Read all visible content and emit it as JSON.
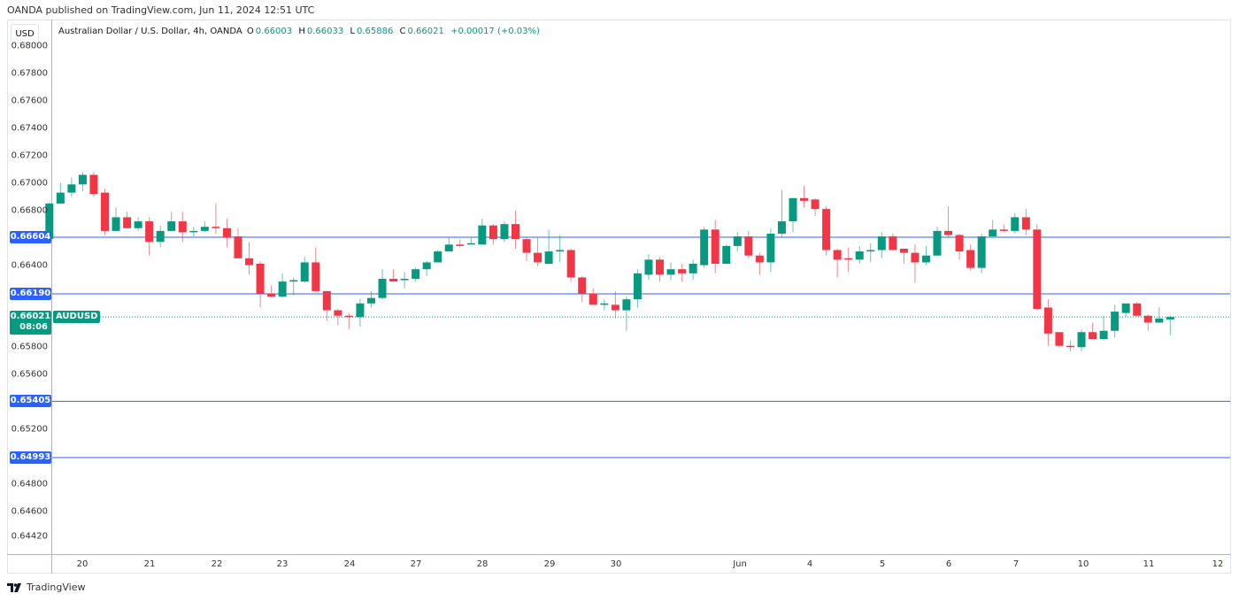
{
  "publisher_line": "OANDA published on TradingView.com, Jun 11, 2024 12:51 UTC",
  "currency_button": "USD",
  "legend": {
    "title": "Australian Dollar / U.S. Dollar, 4h, OANDA",
    "o_label": "O",
    "o": "0.66003",
    "h_label": "H",
    "h": "0.66033",
    "l_label": "L",
    "l": "0.65886",
    "c_label": "C",
    "c": "0.66021",
    "change": "+0.00017 (+0.03%)"
  },
  "symbol_tag": "AUDUSD",
  "current_price": {
    "value": "0.66021",
    "countdown": "08:06",
    "price": 0.66021
  },
  "horizontal_levels": [
    {
      "label": "0.66604",
      "price": 0.66604
    },
    {
      "label": "0.66190",
      "price": 0.6619
    },
    {
      "label": "0.65405",
      "price": 0.65405
    },
    {
      "label": "0.64993",
      "price": 0.64993
    }
  ],
  "price_axis": [
    {
      "label": "0.68000",
      "price": 0.68
    },
    {
      "label": "0.67800",
      "price": 0.678
    },
    {
      "label": "0.67600",
      "price": 0.676
    },
    {
      "label": "0.67400",
      "price": 0.674
    },
    {
      "label": "0.67200",
      "price": 0.672
    },
    {
      "label": "0.67000",
      "price": 0.67
    },
    {
      "label": "0.66800",
      "price": 0.668
    },
    {
      "label": "0.66400",
      "price": 0.664
    },
    {
      "label": "0.65800",
      "price": 0.658
    },
    {
      "label": "0.65600",
      "price": 0.656
    },
    {
      "label": "0.65200",
      "price": 0.652
    },
    {
      "label": "0.64800",
      "price": 0.648
    },
    {
      "label": "0.64600",
      "price": 0.646
    },
    {
      "label": "0.64420",
      "price": 0.6442
    }
  ],
  "time_axis": [
    "20",
    "21",
    "22",
    "23",
    "24",
    "27",
    "28",
    "29",
    "30",
    "Jun",
    "4",
    "5",
    "6",
    "7",
    "10",
    "11",
    "12"
  ],
  "colors": {
    "up": "#089981",
    "down": "#f23645",
    "level": "#2962ff"
  },
  "logo_text": "TradingView",
  "chart_data": {
    "type": "candlestick",
    "title": "Australian Dollar / U.S. Dollar, 4h, OANDA",
    "ohlc_order": [
      "open",
      "high",
      "low",
      "close"
    ],
    "candles": [
      [
        0.6659,
        0.6686,
        0.6658,
        0.6685
      ],
      [
        0.6685,
        0.67,
        0.6685,
        0.6693
      ],
      [
        0.6693,
        0.6704,
        0.669,
        0.6699
      ],
      [
        0.6699,
        0.6708,
        0.6694,
        0.6706
      ],
      [
        0.6706,
        0.6708,
        0.669,
        0.6692
      ],
      [
        0.6693,
        0.6696,
        0.6662,
        0.6665
      ],
      [
        0.6665,
        0.6682,
        0.6665,
        0.6675
      ],
      [
        0.6675,
        0.6679,
        0.6667,
        0.6667
      ],
      [
        0.6667,
        0.6675,
        0.6665,
        0.6672
      ],
      [
        0.6672,
        0.6675,
        0.6647,
        0.6657
      ],
      [
        0.6657,
        0.6669,
        0.6653,
        0.6665
      ],
      [
        0.6665,
        0.6679,
        0.6665,
        0.6672
      ],
      [
        0.6672,
        0.6679,
        0.6657,
        0.6664
      ],
      [
        0.6664,
        0.6668,
        0.6661,
        0.6665
      ],
      [
        0.6665,
        0.6672,
        0.6664,
        0.6668
      ],
      [
        0.6668,
        0.6685,
        0.6663,
        0.6667
      ],
      [
        0.6667,
        0.6674,
        0.6653,
        0.666
      ],
      [
        0.6661,
        0.6667,
        0.6645,
        0.6645
      ],
      [
        0.6645,
        0.6657,
        0.6633,
        0.664
      ],
      [
        0.6641,
        0.6643,
        0.6609,
        0.6619
      ],
      [
        0.6619,
        0.6625,
        0.6616,
        0.6617
      ],
      [
        0.6617,
        0.6634,
        0.6616,
        0.6628
      ],
      [
        0.6628,
        0.6631,
        0.6618,
        0.6629
      ],
      [
        0.6628,
        0.6646,
        0.6627,
        0.6642
      ],
      [
        0.6642,
        0.6653,
        0.662,
        0.6621
      ],
      [
        0.6621,
        0.6621,
        0.6599,
        0.6607
      ],
      [
        0.6607,
        0.6608,
        0.6596,
        0.6603
      ],
      [
        0.6603,
        0.6605,
        0.6593,
        0.6602
      ],
      [
        0.6602,
        0.6615,
        0.6595,
        0.6612
      ],
      [
        0.6612,
        0.6621,
        0.6609,
        0.6616
      ],
      [
        0.6616,
        0.6637,
        0.6615,
        0.663
      ],
      [
        0.663,
        0.6637,
        0.6628,
        0.6628
      ],
      [
        0.6629,
        0.6635,
        0.6623,
        0.663
      ],
      [
        0.663,
        0.6638,
        0.6628,
        0.6637
      ],
      [
        0.6637,
        0.6643,
        0.6632,
        0.6642
      ],
      [
        0.6642,
        0.6651,
        0.6642,
        0.665
      ],
      [
        0.665,
        0.666,
        0.665,
        0.6655
      ],
      [
        0.6655,
        0.6659,
        0.6653,
        0.6654
      ],
      [
        0.6655,
        0.666,
        0.6655,
        0.6656
      ],
      [
        0.6655,
        0.6674,
        0.6655,
        0.6669
      ],
      [
        0.6669,
        0.667,
        0.6655,
        0.6659
      ],
      [
        0.6659,
        0.6672,
        0.6657,
        0.667
      ],
      [
        0.667,
        0.668,
        0.6652,
        0.6659
      ],
      [
        0.6659,
        0.666,
        0.6643,
        0.6649
      ],
      [
        0.6649,
        0.666,
        0.6639,
        0.6642
      ],
      [
        0.6641,
        0.6666,
        0.6641,
        0.665
      ],
      [
        0.665,
        0.6662,
        0.6642,
        0.6651
      ],
      [
        0.6651,
        0.6652,
        0.6628,
        0.6631
      ],
      [
        0.6631,
        0.6632,
        0.6613,
        0.6619
      ],
      [
        0.6619,
        0.6623,
        0.6611,
        0.6611
      ],
      [
        0.6611,
        0.6615,
        0.6607,
        0.6612
      ],
      [
        0.6611,
        0.6621,
        0.6601,
        0.6607
      ],
      [
        0.6607,
        0.6617,
        0.6592,
        0.6615
      ],
      [
        0.6615,
        0.6637,
        0.6609,
        0.6634
      ],
      [
        0.6633,
        0.6648,
        0.6629,
        0.6644
      ],
      [
        0.6644,
        0.6646,
        0.6628,
        0.6633
      ],
      [
        0.6633,
        0.6642,
        0.6629,
        0.6637
      ],
      [
        0.6637,
        0.6641,
        0.6628,
        0.6634
      ],
      [
        0.6634,
        0.6644,
        0.6629,
        0.6641
      ],
      [
        0.664,
        0.6668,
        0.6638,
        0.6666
      ],
      [
        0.6666,
        0.6673,
        0.6634,
        0.6641
      ],
      [
        0.6641,
        0.6655,
        0.6641,
        0.6654
      ],
      [
        0.6654,
        0.6664,
        0.665,
        0.6661
      ],
      [
        0.6661,
        0.6665,
        0.6645,
        0.6647
      ],
      [
        0.6647,
        0.6649,
        0.6633,
        0.6642
      ],
      [
        0.6642,
        0.6667,
        0.6635,
        0.6663
      ],
      [
        0.6663,
        0.6695,
        0.666,
        0.6672
      ],
      [
        0.6672,
        0.6689,
        0.6664,
        0.6689
      ],
      [
        0.6689,
        0.6698,
        0.6682,
        0.6687
      ],
      [
        0.6688,
        0.6689,
        0.6676,
        0.6681
      ],
      [
        0.6681,
        0.6683,
        0.6647,
        0.6651
      ],
      [
        0.6651,
        0.6652,
        0.6631,
        0.6644
      ],
      [
        0.6645,
        0.6653,
        0.6635,
        0.6644
      ],
      [
        0.6644,
        0.6654,
        0.6641,
        0.665
      ],
      [
        0.665,
        0.6656,
        0.6642,
        0.6651
      ],
      [
        0.6651,
        0.6664,
        0.6645,
        0.6661
      ],
      [
        0.6661,
        0.6663,
        0.6651,
        0.6651
      ],
      [
        0.6652,
        0.6652,
        0.6641,
        0.6649
      ],
      [
        0.6649,
        0.6655,
        0.6627,
        0.6642
      ],
      [
        0.6642,
        0.6654,
        0.664,
        0.6647
      ],
      [
        0.6647,
        0.6668,
        0.6647,
        0.6665
      ],
      [
        0.6665,
        0.6683,
        0.666,
        0.6662
      ],
      [
        0.6662,
        0.6663,
        0.6644,
        0.665
      ],
      [
        0.6651,
        0.6655,
        0.6636,
        0.6638
      ],
      [
        0.6638,
        0.6663,
        0.6634,
        0.6661
      ],
      [
        0.6661,
        0.6673,
        0.6661,
        0.6666
      ],
      [
        0.6666,
        0.667,
        0.6664,
        0.6665
      ],
      [
        0.6665,
        0.6678,
        0.6663,
        0.6675
      ],
      [
        0.6675,
        0.6681,
        0.6662,
        0.6666
      ],
      [
        0.6666,
        0.667,
        0.6607,
        0.6608
      ],
      [
        0.6609,
        0.6615,
        0.6581,
        0.659
      ],
      [
        0.6591,
        0.6591,
        0.658,
        0.6581
      ],
      [
        0.6581,
        0.6585,
        0.6577,
        0.658
      ],
      [
        0.658,
        0.6593,
        0.6577,
        0.6591
      ],
      [
        0.6591,
        0.6598,
        0.6586,
        0.6586
      ],
      [
        0.6586,
        0.6603,
        0.6585,
        0.6592
      ],
      [
        0.6592,
        0.6611,
        0.6587,
        0.6606
      ],
      [
        0.6605,
        0.6612,
        0.6602,
        0.6612
      ],
      [
        0.6612,
        0.6613,
        0.6603,
        0.6603
      ],
      [
        0.6603,
        0.6604,
        0.6592,
        0.6598
      ],
      [
        0.6598,
        0.6609,
        0.6598,
        0.6601
      ],
      [
        0.66003,
        0.66033,
        0.65886,
        0.66021
      ]
    ],
    "ylim": [
      0.6442,
      0.68
    ],
    "grid": false
  }
}
